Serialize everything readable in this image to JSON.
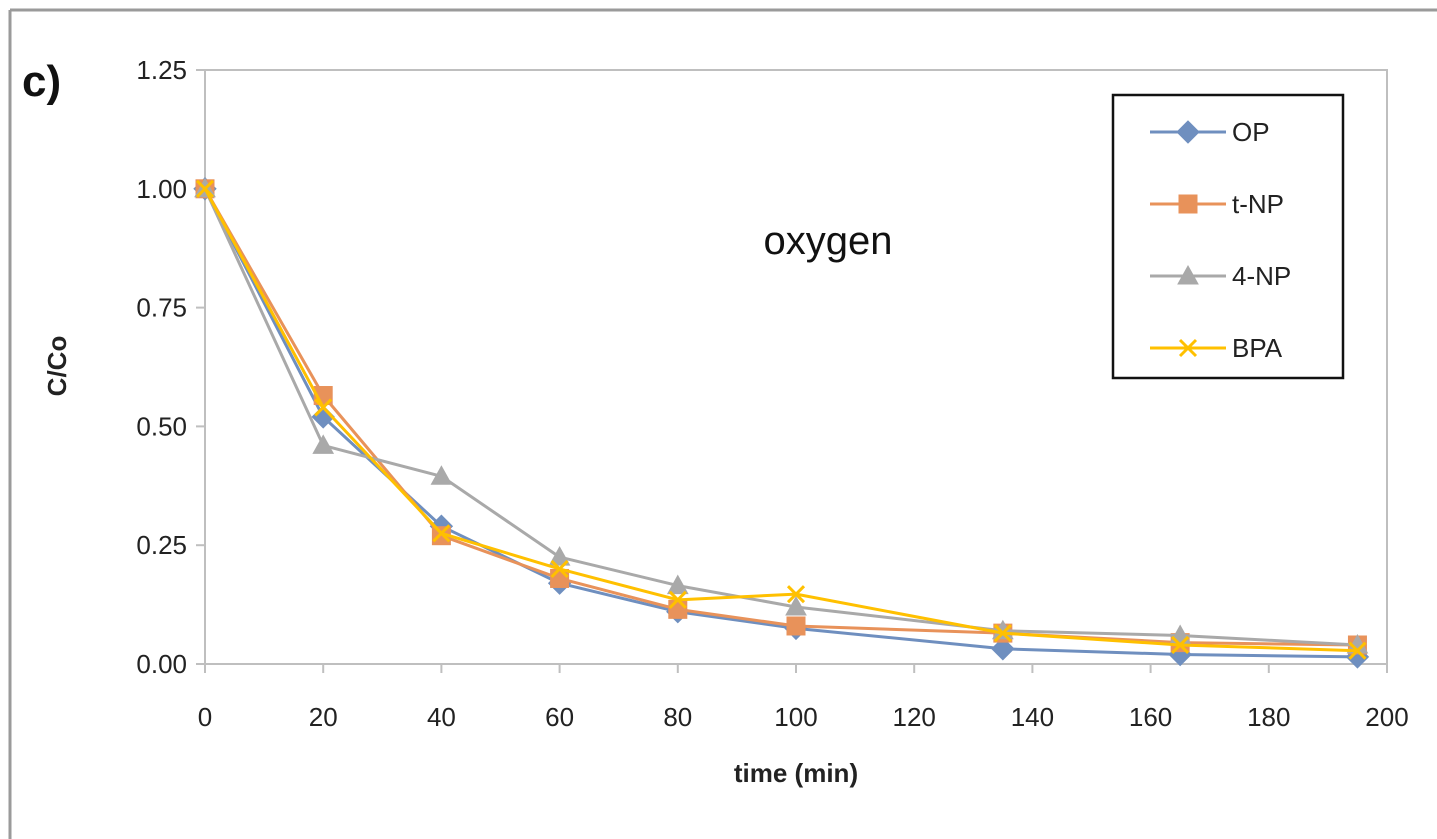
{
  "chart_data": {
    "type": "line",
    "panel_label": "c)",
    "annotation": "oxygen",
    "xlabel": "time (min)",
    "ylabel": "C/Co",
    "xlim": [
      0,
      200
    ],
    "ylim": [
      0,
      1.25
    ],
    "x_ticks": [
      "0",
      "20",
      "40",
      "60",
      "80",
      "100",
      "120",
      "140",
      "160",
      "180",
      "200"
    ],
    "y_ticks": [
      "0.00",
      "0.25",
      "0.50",
      "0.75",
      "1.00",
      "1.25"
    ],
    "grid": false,
    "legend_position": "top-right",
    "x": [
      0,
      20,
      40,
      60,
      80,
      100,
      135,
      165,
      195
    ],
    "series": [
      {
        "name": "OP",
        "color": "#6F8FBF",
        "marker": "diamond",
        "values": [
          1.0,
          0.52,
          0.29,
          0.17,
          0.11,
          0.075,
          0.032,
          0.02,
          0.015
        ]
      },
      {
        "name": "t-NP",
        "color": "#E8925A",
        "marker": "square",
        "values": [
          1.0,
          0.565,
          0.27,
          0.18,
          0.115,
          0.08,
          0.065,
          0.045,
          0.04
        ]
      },
      {
        "name": "4-NP",
        "color": "#A9A9A9",
        "marker": "triangle",
        "values": [
          1.0,
          0.46,
          0.395,
          0.225,
          0.165,
          0.12,
          0.07,
          0.06,
          0.04
        ]
      },
      {
        "name": "BPA",
        "color": "#FFC000",
        "marker": "x",
        "values": [
          1.0,
          0.54,
          0.275,
          0.2,
          0.135,
          0.147,
          0.065,
          0.04,
          0.028
        ]
      }
    ]
  }
}
